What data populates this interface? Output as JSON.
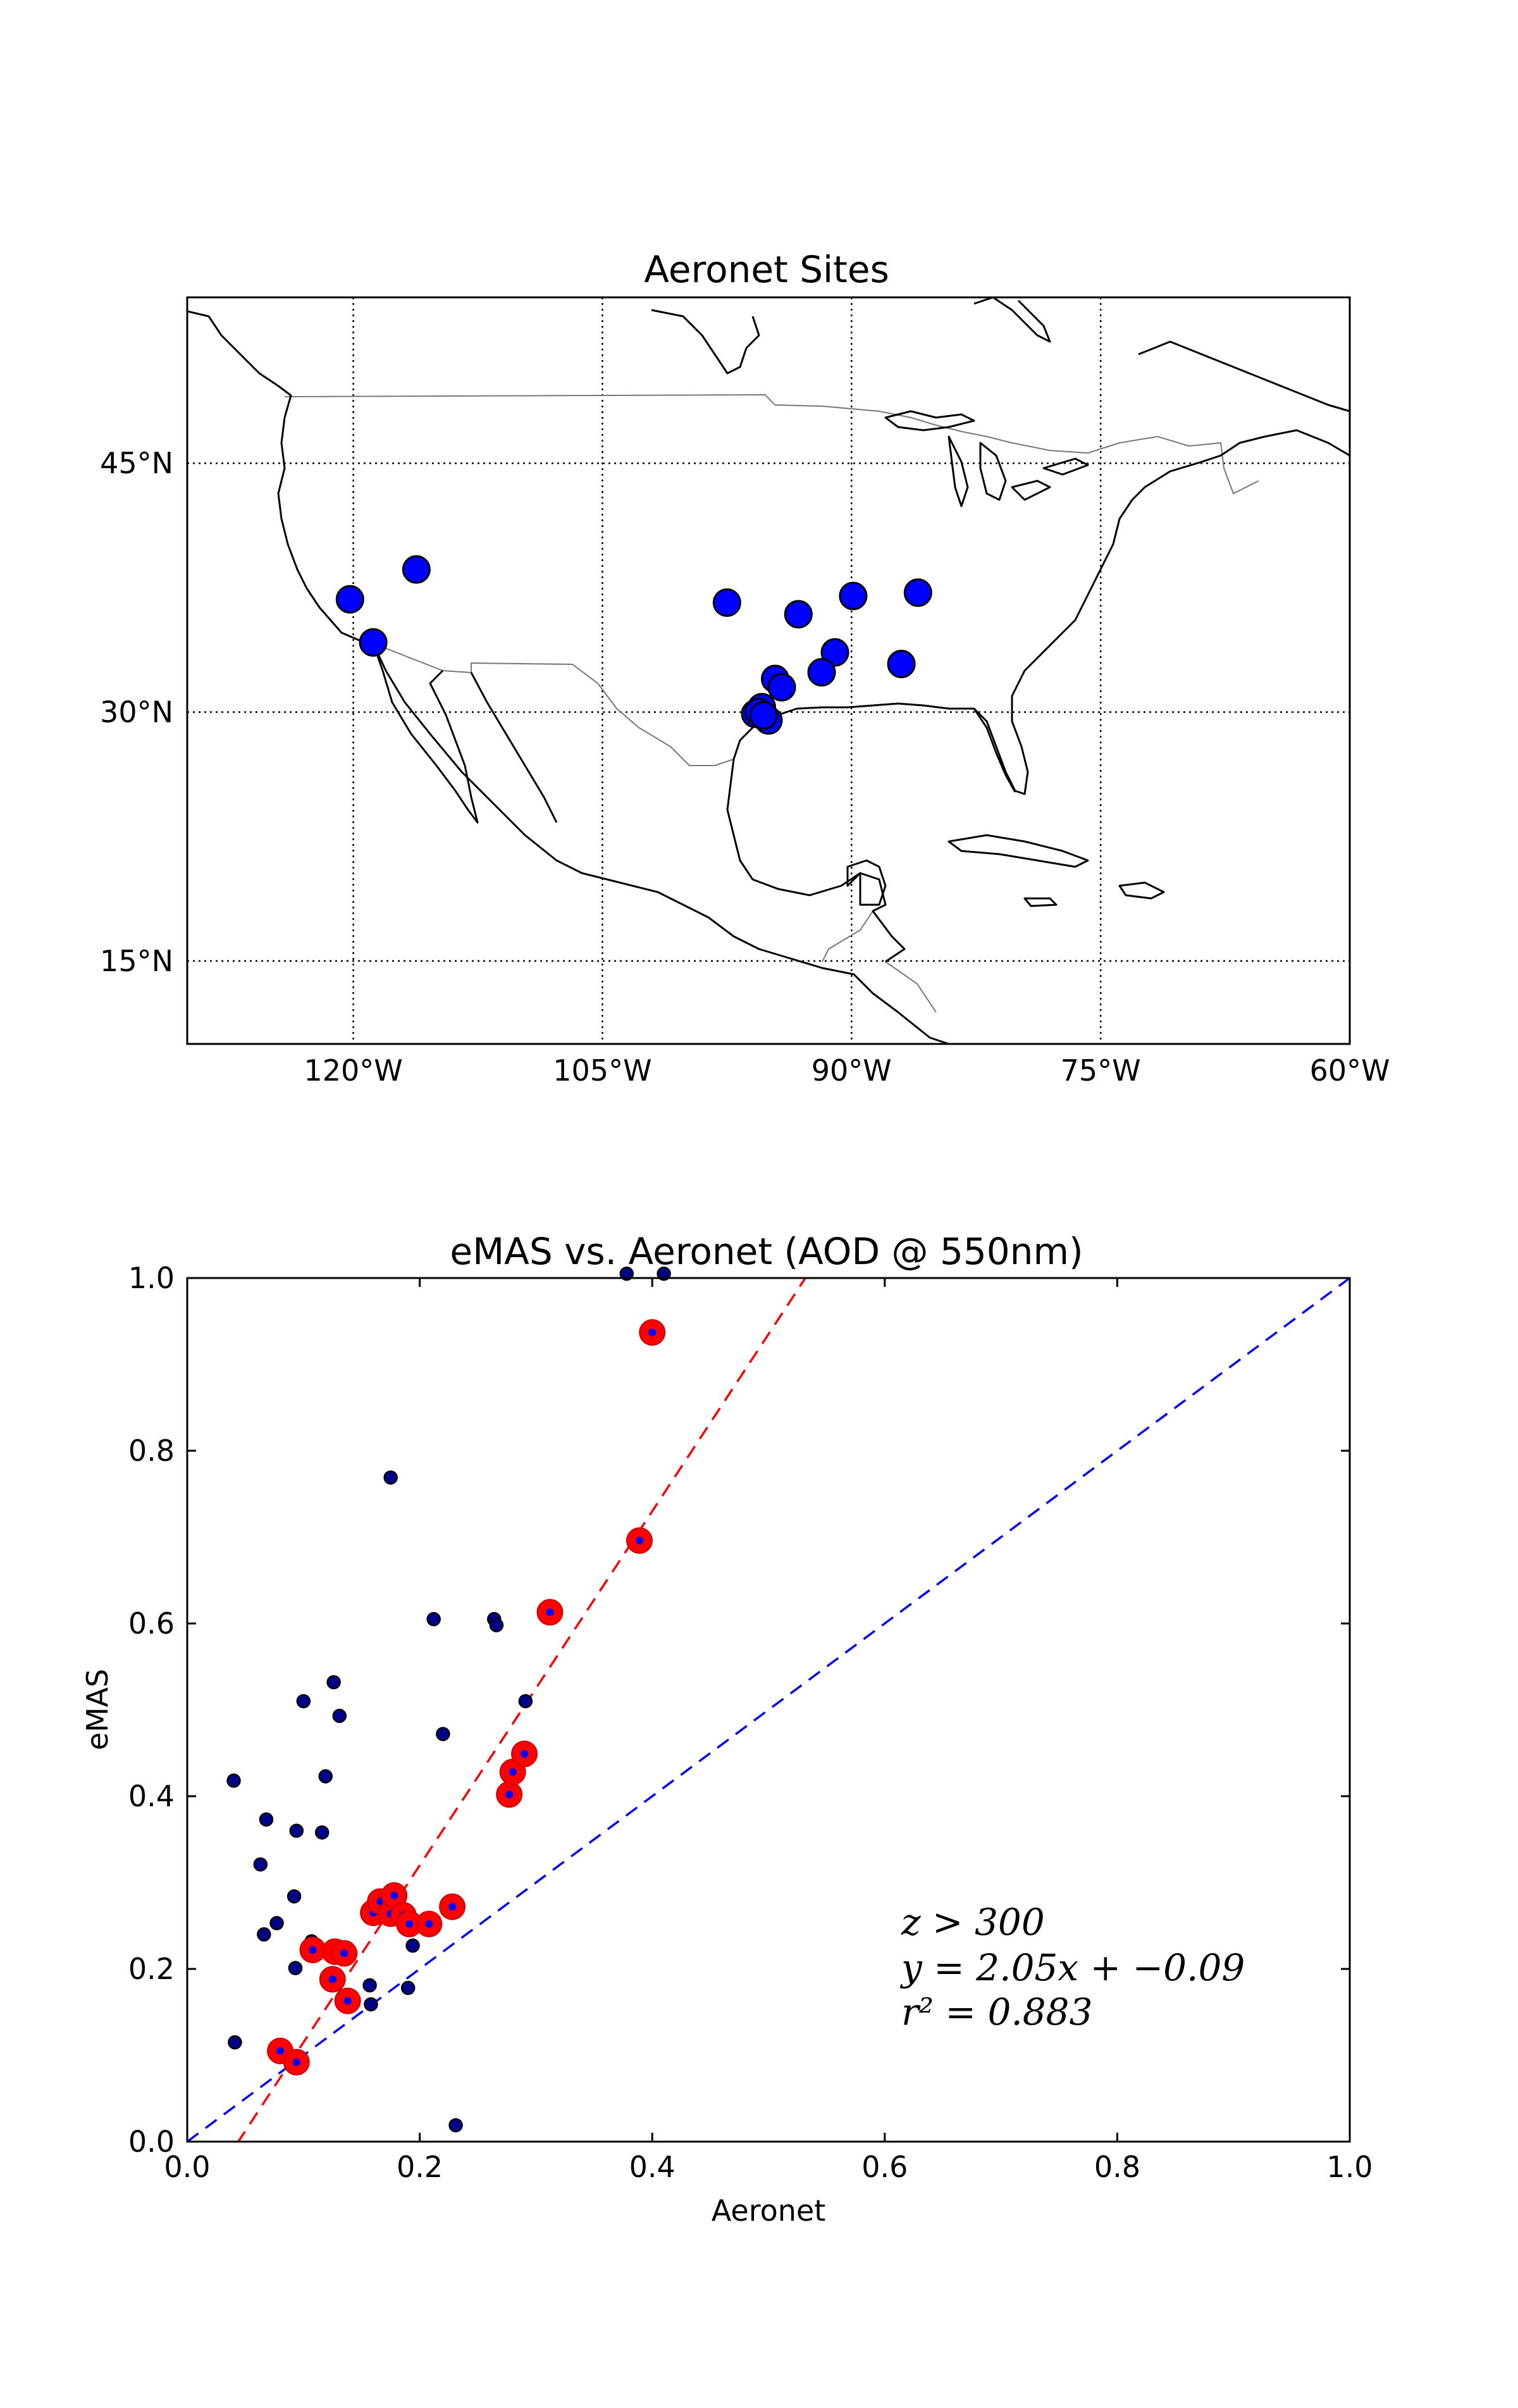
{
  "map": {
    "title": "Aeronet Sites",
    "lat_labels": [
      "45°N",
      "30°N",
      "15°N"
    ],
    "lon_labels": [
      "120°W",
      "105°W",
      "90°W",
      "75°W",
      "60°W"
    ],
    "lon_range": [
      -130,
      -60
    ],
    "lat_range": [
      10,
      55
    ],
    "site_color": "#0000ff",
    "sites": [
      [
        -120.2,
        36.8
      ],
      [
        -116.2,
        38.6
      ],
      [
        -118.8,
        34.2
      ],
      [
        -97.5,
        36.6
      ],
      [
        -93.2,
        35.9
      ],
      [
        -89.9,
        37.0
      ],
      [
        -86.0,
        37.2
      ],
      [
        -91.0,
        33.6
      ],
      [
        -91.8,
        32.4
      ],
      [
        -87.0,
        32.9
      ],
      [
        -94.6,
        32.0
      ],
      [
        -94.2,
        31.5
      ],
      [
        -95.4,
        30.3
      ],
      [
        -95.8,
        29.9
      ],
      [
        -95.2,
        29.7
      ],
      [
        -95.0,
        29.5
      ],
      [
        -95.6,
        30.0
      ],
      [
        -95.3,
        29.8
      ]
    ]
  },
  "scatter": {
    "chart_data": {
      "type": "scatter",
      "title": "eMAS vs. Aeronet (AOD @ 550nm)",
      "xlabel": "Aeronet",
      "ylabel": "eMAS",
      "xlim": [
        0.0,
        1.0
      ],
      "ylim": [
        0.0,
        1.0
      ],
      "x_ticks": [
        "0.0",
        "0.2",
        "0.4",
        "0.6",
        "0.8",
        "1.0"
      ],
      "y_ticks": [
        "0.0",
        "0.2",
        "0.4",
        "0.6",
        "0.8",
        "1.0"
      ],
      "series": [
        {
          "color": "#00008b",
          "points": [
            [
              0.04,
              0.418
            ],
            [
              0.041,
              0.115
            ],
            [
              0.063,
              0.321
            ],
            [
              0.068,
              0.373
            ],
            [
              0.066,
              0.24
            ],
            [
              0.077,
              0.253
            ],
            [
              0.092,
              0.284
            ],
            [
              0.094,
              0.36
            ],
            [
              0.093,
              0.201
            ],
            [
              0.1,
              0.51
            ],
            [
              0.107,
              0.232
            ],
            [
              0.116,
              0.358
            ],
            [
              0.119,
              0.423
            ],
            [
              0.126,
              0.532
            ],
            [
              0.131,
              0.493
            ],
            [
              0.157,
              0.181
            ],
            [
              0.158,
              0.159
            ],
            [
              0.175,
              0.769
            ],
            [
              0.19,
              0.178
            ],
            [
              0.194,
              0.227
            ],
            [
              0.212,
              0.605
            ],
            [
              0.22,
              0.472
            ],
            [
              0.264,
              0.605
            ],
            [
              0.266,
              0.598
            ],
            [
              0.231,
              0.019
            ],
            [
              0.378,
              1.005
            ],
            [
              0.41,
              1.005
            ],
            [
              0.291,
              0.51
            ]
          ]
        },
        {
          "color": "#ff0000",
          "points": [
            [
              0.08,
              0.105
            ],
            [
              0.094,
              0.092
            ],
            [
              0.108,
              0.222
            ],
            [
              0.125,
              0.188
            ],
            [
              0.127,
              0.22
            ],
            [
              0.135,
              0.218
            ],
            [
              0.138,
              0.163
            ],
            [
              0.16,
              0.265
            ],
            [
              0.166,
              0.278
            ],
            [
              0.175,
              0.264
            ],
            [
              0.178,
              0.285
            ],
            [
              0.186,
              0.262
            ],
            [
              0.191,
              0.252
            ],
            [
              0.208,
              0.252
            ],
            [
              0.228,
              0.272
            ],
            [
              0.277,
              0.402
            ],
            [
              0.28,
              0.428
            ],
            [
              0.29,
              0.449
            ],
            [
              0.312,
              0.613
            ],
            [
              0.389,
              0.696
            ],
            [
              0.4,
              0.937
            ]
          ]
        }
      ],
      "lines": [
        {
          "color": "#ff0000",
          "style": "dashed",
          "slope": 2.05,
          "intercept": -0.09
        },
        {
          "color": "#0000ff",
          "style": "dashed",
          "slope": 1.0,
          "intercept": 0.0
        }
      ],
      "annotations": [
        "z > 300",
        "y = 2.05x + −0.09",
        "r² = 0.883"
      ],
      "grid": false
    }
  }
}
